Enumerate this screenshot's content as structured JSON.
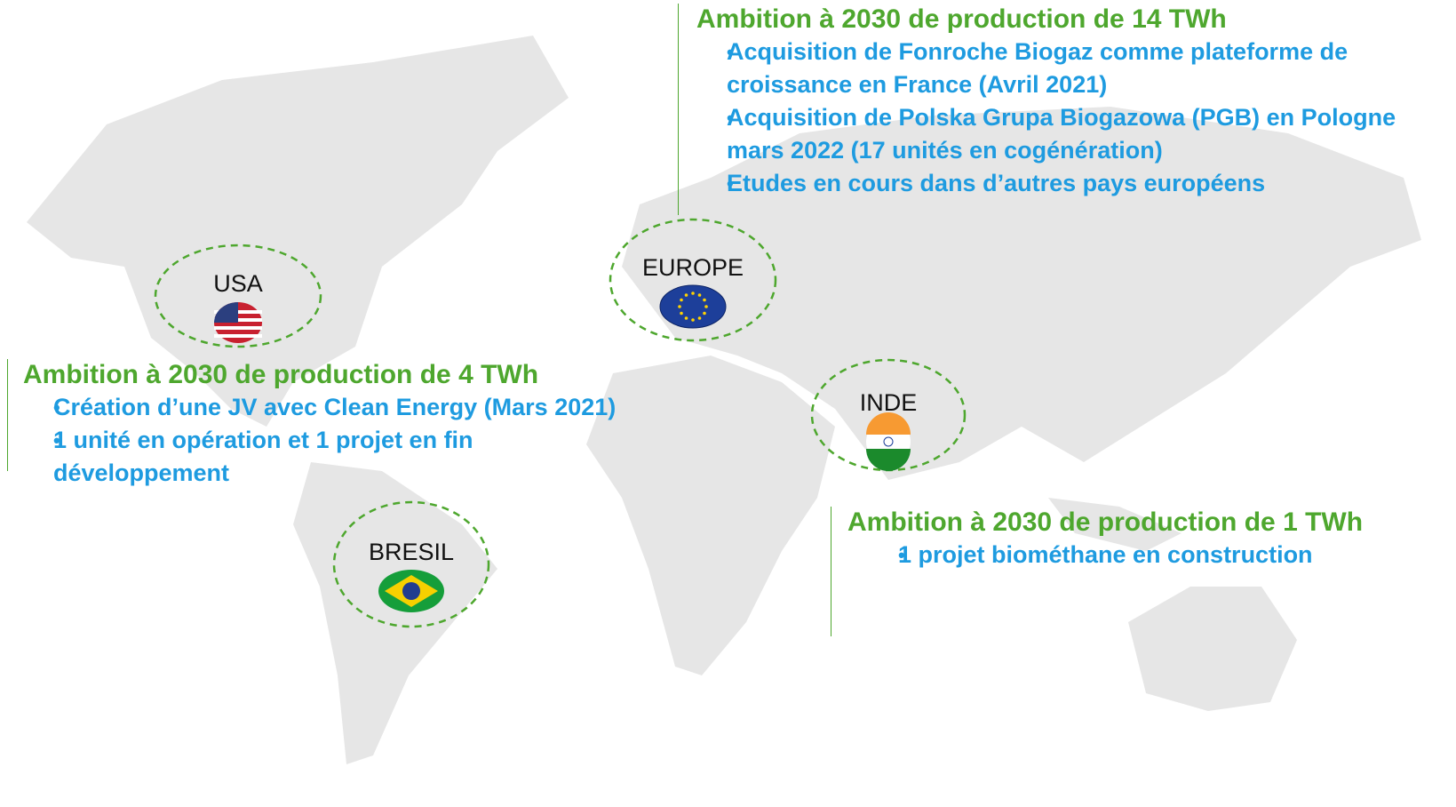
{
  "regions": [
    {
      "label": "USA"
    },
    {
      "label": "EUROPE"
    },
    {
      "label": "INDE"
    },
    {
      "label": "BRESIL"
    }
  ],
  "blocks": [
    {
      "title": "Ambition à 2030 de production de 14 TWh",
      "bullets": [
        "Acquisition de Fonroche Biogaz comme plateforme de croissance en France (Avril 2021)",
        "Acquisition de Polska Grupa Biogazowa (PGB) en Pologne mars 2022 (17 unités en cogénération)",
        "Etudes en cours dans d’autres pays européens"
      ]
    },
    {
      "title": "Ambition à 2030 de production de 4 TWh",
      "bullets": [
        "Création d’une JV avec Clean Energy (Mars 2021)",
        "1 unité en opération et 1 projet en fin développement"
      ]
    },
    {
      "title": "Ambition à 2030 de production de 1 TWh",
      "bullets": [
        "1 projet biométhane en construction"
      ]
    }
  ]
}
